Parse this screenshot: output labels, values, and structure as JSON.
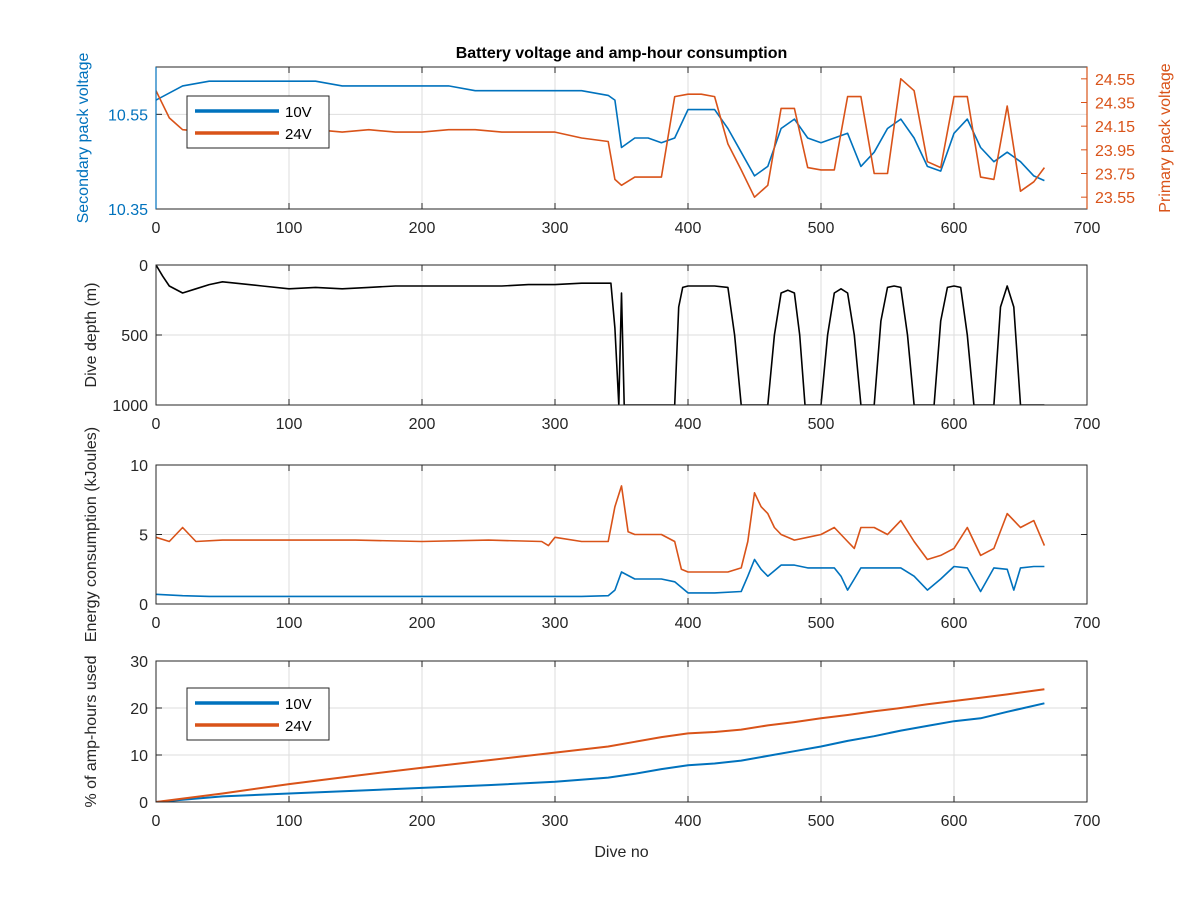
{
  "colors": {
    "v10": "#0072bd",
    "v24": "#d95319",
    "depth": "#000000",
    "axis": "#262626",
    "grid": "#dedede"
  },
  "chart_data": [
    {
      "id": "voltage",
      "type": "line",
      "title": "Battery voltage and amp-hour consumption",
      "xlabel": "",
      "ylabel": "Secondary pack voltage",
      "ylabel_right": "Primary pack voltage",
      "xlim": [
        0,
        700
      ],
      "ylim": [
        10.35,
        10.65
      ],
      "ylim_right": [
        23.45,
        24.65
      ],
      "xticks": [
        0,
        100,
        200,
        300,
        400,
        500,
        600,
        700
      ],
      "yticks": [
        "10.35",
        "10.55"
      ],
      "yticks_right": [
        "23.55",
        "23.75",
        "23.95",
        "24.15",
        "24.35",
        "24.55"
      ],
      "grid": true,
      "legend": {
        "placement": "top-left",
        "entries": [
          "10V",
          "24V"
        ]
      },
      "series": [
        {
          "name": "10V",
          "axis": "left",
          "x": [
            0,
            20,
            40,
            60,
            80,
            100,
            120,
            140,
            160,
            180,
            200,
            220,
            240,
            260,
            280,
            300,
            320,
            340,
            345,
            350,
            360,
            370,
            380,
            390,
            400,
            410,
            420,
            430,
            440,
            450,
            460,
            470,
            480,
            490,
            500,
            510,
            520,
            530,
            540,
            550,
            560,
            570,
            580,
            590,
            600,
            610,
            620,
            630,
            640,
            650,
            660,
            668
          ],
          "y": [
            10.58,
            10.61,
            10.62,
            10.62,
            10.62,
            10.62,
            10.62,
            10.61,
            10.61,
            10.61,
            10.61,
            10.61,
            10.6,
            10.6,
            10.6,
            10.6,
            10.6,
            10.59,
            10.58,
            10.48,
            10.5,
            10.5,
            10.49,
            10.5,
            10.56,
            10.56,
            10.56,
            10.52,
            10.47,
            10.42,
            10.44,
            10.52,
            10.54,
            10.5,
            10.49,
            10.5,
            10.51,
            10.44,
            10.47,
            10.52,
            10.54,
            10.5,
            10.44,
            10.43,
            10.51,
            10.54,
            10.48,
            10.45,
            10.47,
            10.45,
            10.42,
            10.41
          ]
        },
        {
          "name": "24V",
          "axis": "right",
          "x": [
            0,
            10,
            20,
            40,
            60,
            80,
            100,
            120,
            140,
            160,
            180,
            200,
            220,
            240,
            260,
            280,
            300,
            320,
            340,
            345,
            350,
            360,
            370,
            380,
            390,
            400,
            410,
            420,
            430,
            440,
            450,
            460,
            470,
            480,
            490,
            500,
            510,
            520,
            530,
            540,
            550,
            560,
            570,
            580,
            590,
            600,
            610,
            620,
            630,
            640,
            650,
            660,
            668
          ],
          "y": [
            24.45,
            24.22,
            24.12,
            24.1,
            24.1,
            24.1,
            24.1,
            24.12,
            24.1,
            24.12,
            24.1,
            24.1,
            24.12,
            24.12,
            24.1,
            24.1,
            24.1,
            24.05,
            24.02,
            23.7,
            23.65,
            23.72,
            23.72,
            23.72,
            24.4,
            24.42,
            24.42,
            24.4,
            24.0,
            23.78,
            23.55,
            23.65,
            24.3,
            24.3,
            23.8,
            23.78,
            23.78,
            24.4,
            24.4,
            23.75,
            23.75,
            24.55,
            24.45,
            23.85,
            23.8,
            24.4,
            24.4,
            23.72,
            23.7,
            24.32,
            23.6,
            23.68,
            23.8
          ]
        }
      ]
    },
    {
      "id": "depth",
      "type": "line",
      "title": "",
      "xlabel": "",
      "ylabel": "Dive depth (m)",
      "xlim": [
        0,
        700
      ],
      "ylim": [
        0,
        1000
      ],
      "y_reversed": true,
      "xticks": [
        0,
        100,
        200,
        300,
        400,
        500,
        600,
        700
      ],
      "yticks": [
        "0",
        "500",
        "1000"
      ],
      "grid": true,
      "series": [
        {
          "name": "",
          "x": [
            0,
            5,
            10,
            20,
            30,
            40,
            50,
            60,
            80,
            100,
            120,
            140,
            160,
            180,
            200,
            220,
            240,
            260,
            280,
            300,
            320,
            340,
            342,
            345,
            348,
            350,
            352,
            355,
            360,
            390,
            393,
            396,
            400,
            410,
            420,
            430,
            435,
            440,
            445,
            460,
            465,
            470,
            475,
            480,
            484,
            488,
            500,
            505,
            510,
            515,
            520,
            525,
            530,
            540,
            545,
            550,
            555,
            560,
            565,
            570,
            575,
            585,
            590,
            595,
            600,
            605,
            610,
            615,
            620,
            630,
            635,
            640,
            645,
            650,
            668
          ],
          "y": [
            0,
            80,
            150,
            200,
            170,
            140,
            120,
            130,
            150,
            170,
            160,
            170,
            160,
            150,
            150,
            150,
            150,
            150,
            140,
            140,
            130,
            130,
            130,
            450,
            1000,
            200,
            1000,
            1000,
            1000,
            1000,
            300,
            160,
            150,
            150,
            150,
            160,
            500,
            1000,
            1000,
            1000,
            500,
            200,
            180,
            200,
            500,
            1000,
            1000,
            500,
            200,
            170,
            200,
            500,
            1000,
            1000,
            400,
            160,
            150,
            160,
            500,
            1000,
            1000,
            1000,
            400,
            160,
            150,
            160,
            500,
            1000,
            1000,
            1000,
            300,
            150,
            300,
            1000,
            1000
          ]
        }
      ]
    },
    {
      "id": "energy",
      "type": "line",
      "title": "",
      "xlabel": "",
      "ylabel": "Energy consumption (kJoules)",
      "xlim": [
        0,
        700
      ],
      "ylim": [
        0,
        10
      ],
      "xticks": [
        0,
        100,
        200,
        300,
        400,
        500,
        600,
        700
      ],
      "yticks": [
        "0",
        "5",
        "10"
      ],
      "grid": true,
      "series": [
        {
          "name": "10V",
          "x": [
            0,
            20,
            40,
            60,
            80,
            100,
            150,
            200,
            250,
            300,
            320,
            340,
            345,
            350,
            360,
            380,
            390,
            400,
            420,
            440,
            445,
            450,
            455,
            460,
            470,
            480,
            490,
            500,
            510,
            515,
            520,
            525,
            530,
            540,
            550,
            560,
            570,
            580,
            590,
            600,
            610,
            620,
            630,
            640,
            645,
            650,
            660,
            668
          ],
          "y": [
            0.7,
            0.6,
            0.55,
            0.55,
            0.55,
            0.55,
            0.55,
            0.55,
            0.55,
            0.55,
            0.55,
            0.6,
            1.0,
            2.3,
            1.8,
            1.8,
            1.6,
            0.8,
            0.8,
            0.9,
            2.0,
            3.2,
            2.5,
            2.0,
            2.8,
            2.8,
            2.6,
            2.6,
            2.6,
            2.0,
            1.0,
            1.8,
            2.6,
            2.6,
            2.6,
            2.6,
            2.0,
            1.0,
            1.8,
            2.7,
            2.6,
            0.9,
            2.6,
            2.5,
            1.0,
            2.6,
            2.7,
            2.7
          ]
        },
        {
          "name": "24V",
          "x": [
            0,
            10,
            20,
            30,
            50,
            100,
            150,
            200,
            250,
            290,
            295,
            300,
            320,
            340,
            345,
            350,
            355,
            360,
            380,
            390,
            395,
            400,
            420,
            430,
            440,
            445,
            450,
            455,
            460,
            465,
            470,
            480,
            490,
            500,
            510,
            520,
            525,
            530,
            540,
            550,
            560,
            570,
            580,
            590,
            600,
            610,
            620,
            630,
            640,
            650,
            660,
            668
          ],
          "y": [
            4.8,
            4.5,
            5.5,
            4.5,
            4.6,
            4.6,
            4.6,
            4.5,
            4.6,
            4.5,
            4.2,
            4.8,
            4.5,
            4.5,
            7.0,
            8.5,
            5.2,
            5.0,
            5.0,
            4.5,
            2.5,
            2.3,
            2.3,
            2.3,
            2.6,
            4.5,
            8.0,
            7.0,
            6.5,
            5.5,
            5.0,
            4.6,
            4.8,
            5.0,
            5.5,
            4.5,
            4.0,
            5.5,
            5.5,
            5.0,
            6.0,
            4.5,
            3.2,
            3.5,
            4.0,
            5.5,
            3.5,
            4.0,
            6.5,
            5.5,
            6.0,
            4.2
          ]
        }
      ]
    },
    {
      "id": "amphours",
      "type": "line",
      "title": "",
      "xlabel": "Dive no",
      "ylabel": "% of amp-hours used",
      "xlim": [
        0,
        700
      ],
      "ylim": [
        0,
        30
      ],
      "xticks": [
        0,
        100,
        200,
        300,
        400,
        500,
        600,
        700
      ],
      "yticks": [
        "0",
        "10",
        "20",
        "30"
      ],
      "grid": true,
      "legend": {
        "placement": "top-left",
        "entries": [
          "10V",
          "24V"
        ]
      },
      "series": [
        {
          "name": "10V",
          "x": [
            0,
            50,
            100,
            150,
            200,
            250,
            300,
            340,
            360,
            380,
            400,
            420,
            440,
            460,
            480,
            500,
            520,
            540,
            560,
            580,
            600,
            620,
            640,
            668
          ],
          "y": [
            0,
            1.2,
            1.8,
            2.4,
            3.0,
            3.6,
            4.3,
            5.2,
            6.0,
            7.0,
            7.8,
            8.2,
            8.8,
            9.8,
            10.8,
            11.8,
            13.0,
            14.0,
            15.2,
            16.2,
            17.2,
            17.8,
            19.2,
            21.0
          ]
        },
        {
          "name": "24V",
          "x": [
            0,
            50,
            100,
            150,
            200,
            250,
            300,
            340,
            360,
            380,
            400,
            420,
            440,
            460,
            480,
            500,
            520,
            540,
            560,
            580,
            600,
            620,
            640,
            668
          ],
          "y": [
            0,
            1.8,
            3.8,
            5.6,
            7.3,
            8.9,
            10.5,
            11.8,
            12.8,
            13.8,
            14.6,
            14.9,
            15.4,
            16.3,
            17.0,
            17.8,
            18.5,
            19.3,
            20.0,
            20.8,
            21.5,
            22.2,
            22.9,
            24.0
          ]
        }
      ]
    }
  ]
}
